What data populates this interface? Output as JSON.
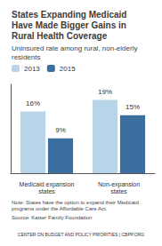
{
  "chart_data": {
    "type": "bar",
    "title": "States Expanding Medicaid\nHave Made Bigger Gains in\nRural Health Coverage",
    "subtitle": "Uninsured rate among rural, non-elderly\nresidents",
    "categories": [
      "Medicaid expansion\nstates",
      "Non-expansion\nstates"
    ],
    "series": [
      {
        "name": "2013",
        "color": "#b8d4e8",
        "values": [
          16,
          19
        ],
        "value_labels": [
          "16%",
          "19%"
        ]
      },
      {
        "name": "2015",
        "color": "#3a6f9f",
        "values": [
          9,
          15
        ],
        "value_labels": [
          "9%",
          "15%"
        ]
      }
    ],
    "ylim": [
      0,
      23
    ],
    "grid": false,
    "legend": "upper left",
    "data_labels": true,
    "tick_labels": "x",
    "annotations": [
      "Note: States have the option to expand their Medicaid\nprograms under the Affordable Care Act.",
      "Source: Kaiser Family Foundation",
      "CENTER ON BUDGET AND POLICY PRIORITIES | CBPP.ORG"
    ]
  }
}
